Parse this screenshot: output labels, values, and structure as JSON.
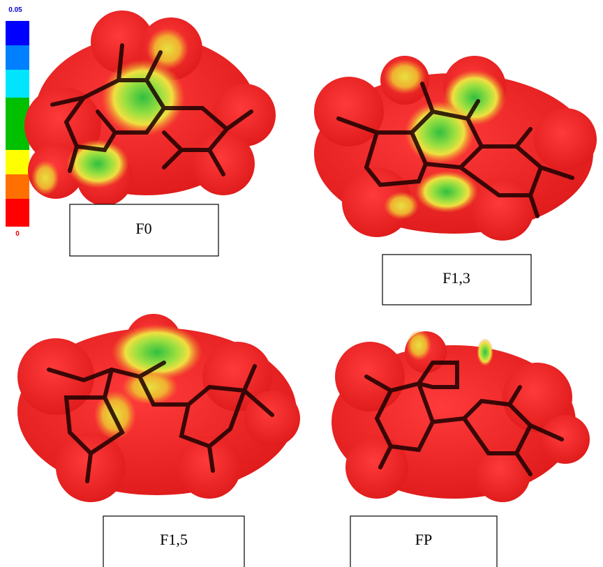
{
  "color_scale": {
    "max_label": "0.05",
    "min_label": "0"
  },
  "panels": [
    {
      "label": "F0"
    },
    {
      "label": "F1,3"
    },
    {
      "label": "F1,5"
    },
    {
      "label": "FP"
    }
  ]
}
